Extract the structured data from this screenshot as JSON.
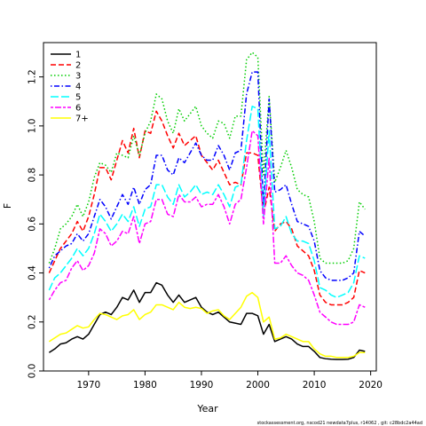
{
  "chart_data": {
    "type": "line",
    "xlabel": "Year",
    "ylabel": "F",
    "xlim": [
      1962,
      2021
    ],
    "ylim": [
      0,
      1.34
    ],
    "xticks": [
      1970,
      1980,
      1990,
      2000,
      2010,
      2020
    ],
    "yticks": [
      0.0,
      0.2,
      0.4,
      0.6,
      0.8,
      1.0,
      1.2
    ],
    "grid": false,
    "legend_position": "top-left",
    "footer": "stockassessment.org,  nscod21  newdata7plus,  r14062 ,  git:  c28bdc2a44ad",
    "x": [
      1963,
      1964,
      1965,
      1966,
      1967,
      1968,
      1969,
      1970,
      1971,
      1972,
      1973,
      1974,
      1975,
      1976,
      1977,
      1978,
      1979,
      1980,
      1981,
      1982,
      1983,
      1984,
      1985,
      1986,
      1987,
      1988,
      1989,
      1990,
      1991,
      1992,
      1993,
      1994,
      1995,
      1996,
      1997,
      1998,
      1999,
      2000,
      2001,
      2002,
      2003,
      2004,
      2005,
      2006,
      2007,
      2008,
      2009,
      2010,
      2011,
      2012,
      2013,
      2014,
      2015,
      2016,
      2017,
      2018,
      2019
    ],
    "series": [
      {
        "name": "1",
        "color": "#000000",
        "dash": "solid",
        "values": [
          0.075,
          0.09,
          0.11,
          0.115,
          0.13,
          0.14,
          0.13,
          0.15,
          0.19,
          0.23,
          0.24,
          0.23,
          0.26,
          0.3,
          0.29,
          0.33,
          0.28,
          0.32,
          0.32,
          0.36,
          0.35,
          0.31,
          0.28,
          0.31,
          0.28,
          0.29,
          0.3,
          0.26,
          0.24,
          0.23,
          0.24,
          0.22,
          0.2,
          0.195,
          0.19,
          0.235,
          0.235,
          0.225,
          0.15,
          0.19,
          0.12,
          0.13,
          0.14,
          0.13,
          0.11,
          0.1,
          0.1,
          0.08,
          0.055,
          0.05,
          0.048,
          0.047,
          0.047,
          0.048,
          0.055,
          0.085,
          0.08
        ]
      },
      {
        "name": "2",
        "color": "#ff0000",
        "dash": "dash",
        "values": [
          0.4,
          0.45,
          0.5,
          0.53,
          0.56,
          0.61,
          0.57,
          0.63,
          0.72,
          0.83,
          0.83,
          0.78,
          0.86,
          0.94,
          0.89,
          0.99,
          0.87,
          0.98,
          0.97,
          1.06,
          1.02,
          0.96,
          0.91,
          0.97,
          0.92,
          0.94,
          0.96,
          0.88,
          0.85,
          0.82,
          0.86,
          0.81,
          0.76,
          0.77,
          0.76,
          0.89,
          0.89,
          0.88,
          0.64,
          0.75,
          0.57,
          0.6,
          0.61,
          0.58,
          0.51,
          0.49,
          0.47,
          0.41,
          0.31,
          0.28,
          0.27,
          0.27,
          0.27,
          0.28,
          0.3,
          0.41,
          0.4
        ]
      },
      {
        "name": "3",
        "color": "#00cd00",
        "dash": "dot",
        "values": [
          0.44,
          0.5,
          0.58,
          0.6,
          0.63,
          0.68,
          0.63,
          0.69,
          0.79,
          0.85,
          0.84,
          0.81,
          0.89,
          0.88,
          0.87,
          0.96,
          0.88,
          0.97,
          1.02,
          1.13,
          1.11,
          1.02,
          0.97,
          1.07,
          1.02,
          1.05,
          1.08,
          1.0,
          0.97,
          0.95,
          1.02,
          1.01,
          0.95,
          1.04,
          1.04,
          1.27,
          1.3,
          1.28,
          0.8,
          1.12,
          0.77,
          0.83,
          0.9,
          0.83,
          0.74,
          0.72,
          0.71,
          0.61,
          0.46,
          0.44,
          0.44,
          0.44,
          0.44,
          0.45,
          0.5,
          0.69,
          0.66
        ]
      },
      {
        "name": "4",
        "color": "#0000ff",
        "dash": "dashdot",
        "values": [
          0.42,
          0.47,
          0.49,
          0.51,
          0.52,
          0.56,
          0.53,
          0.56,
          0.63,
          0.7,
          0.67,
          0.62,
          0.67,
          0.72,
          0.68,
          0.75,
          0.68,
          0.74,
          0.76,
          0.88,
          0.88,
          0.82,
          0.8,
          0.87,
          0.85,
          0.89,
          0.93,
          0.88,
          0.86,
          0.86,
          0.92,
          0.88,
          0.82,
          0.89,
          0.9,
          1.13,
          1.22,
          1.22,
          0.67,
          1.11,
          0.73,
          0.74,
          0.76,
          0.68,
          0.61,
          0.6,
          0.59,
          0.53,
          0.41,
          0.38,
          0.37,
          0.37,
          0.37,
          0.38,
          0.4,
          0.57,
          0.55
        ]
      },
      {
        "name": "5",
        "color": "#00ffff",
        "dash": "longdash",
        "values": [
          0.33,
          0.38,
          0.4,
          0.43,
          0.46,
          0.5,
          0.47,
          0.5,
          0.56,
          0.64,
          0.61,
          0.57,
          0.6,
          0.64,
          0.61,
          0.67,
          0.59,
          0.66,
          0.67,
          0.76,
          0.76,
          0.71,
          0.68,
          0.76,
          0.71,
          0.73,
          0.76,
          0.72,
          0.73,
          0.72,
          0.76,
          0.72,
          0.67,
          0.75,
          0.76,
          0.94,
          1.08,
          1.07,
          0.63,
          0.98,
          0.58,
          0.59,
          0.63,
          0.56,
          0.53,
          0.53,
          0.52,
          0.45,
          0.34,
          0.33,
          0.31,
          0.3,
          0.31,
          0.32,
          0.36,
          0.47,
          0.46
        ]
      },
      {
        "name": "6",
        "color": "#ff00ff",
        "dash": "twodash",
        "values": [
          0.29,
          0.33,
          0.36,
          0.37,
          0.42,
          0.45,
          0.41,
          0.43,
          0.48,
          0.58,
          0.56,
          0.51,
          0.53,
          0.57,
          0.56,
          0.63,
          0.52,
          0.6,
          0.61,
          0.7,
          0.7,
          0.64,
          0.63,
          0.72,
          0.69,
          0.69,
          0.71,
          0.67,
          0.68,
          0.68,
          0.72,
          0.67,
          0.6,
          0.68,
          0.7,
          0.83,
          0.98,
          0.96,
          0.6,
          0.87,
          0.44,
          0.44,
          0.47,
          0.43,
          0.4,
          0.39,
          0.37,
          0.31,
          0.24,
          0.22,
          0.2,
          0.19,
          0.19,
          0.19,
          0.2,
          0.27,
          0.26
        ]
      },
      {
        "name": "7+",
        "color": "#ffff00",
        "dash": "solid",
        "values": [
          0.12,
          0.135,
          0.15,
          0.155,
          0.17,
          0.185,
          0.175,
          0.18,
          0.21,
          0.235,
          0.23,
          0.22,
          0.21,
          0.225,
          0.23,
          0.25,
          0.21,
          0.23,
          0.24,
          0.27,
          0.27,
          0.26,
          0.25,
          0.28,
          0.26,
          0.255,
          0.26,
          0.255,
          0.235,
          0.245,
          0.25,
          0.225,
          0.21,
          0.235,
          0.26,
          0.305,
          0.32,
          0.3,
          0.2,
          0.22,
          0.13,
          0.135,
          0.15,
          0.14,
          0.13,
          0.12,
          0.12,
          0.09,
          0.07,
          0.06,
          0.06,
          0.055,
          0.055,
          0.055,
          0.06,
          0.075,
          0.075
        ]
      }
    ]
  }
}
